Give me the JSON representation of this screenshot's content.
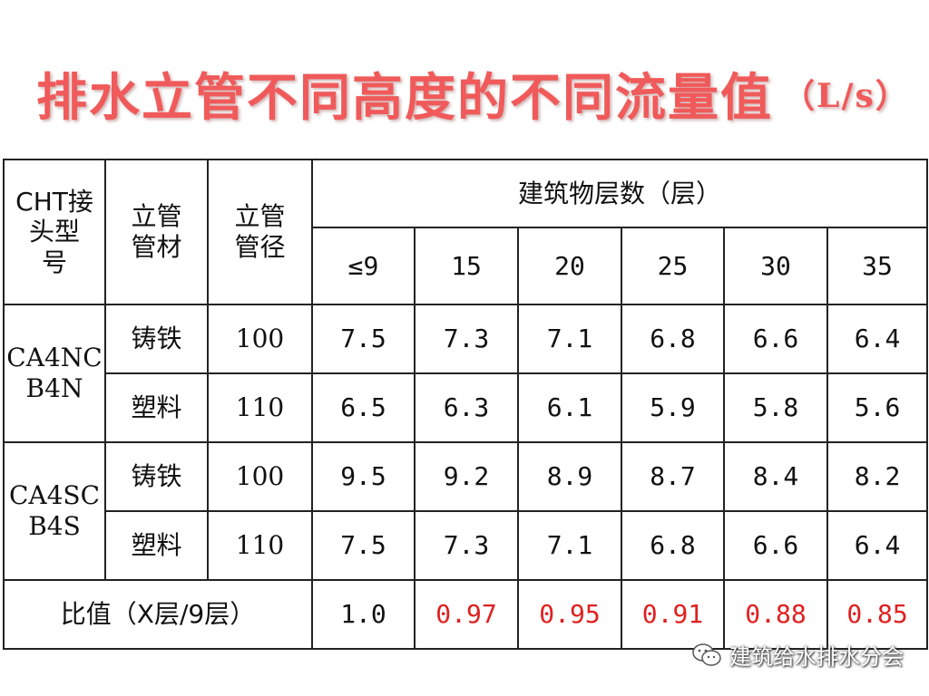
{
  "title": {
    "main": "排水立管不同高度的不同流量值",
    "unit": "（L/s）"
  },
  "table": {
    "headers": {
      "joint_type": [
        "CHT接",
        "头型",
        "号"
      ],
      "pipe_material": [
        "立管",
        "管材"
      ],
      "pipe_diameter": [
        "立管",
        "管径"
      ],
      "floors_group": "建筑物层数（层）",
      "floors": [
        "≤9",
        "15",
        "20",
        "25",
        "30",
        "35"
      ]
    },
    "groups": [
      {
        "joint_type": [
          "CA4NC",
          "B4N"
        ],
        "rows": [
          {
            "material": "铸铁",
            "diameter": "100",
            "values": [
              "7.5",
              "7.3",
              "7.1",
              "6.8",
              "6.6",
              "6.4"
            ]
          },
          {
            "material": "塑料",
            "diameter": "110",
            "values": [
              "6.5",
              "6.3",
              "6.1",
              "5.9",
              "5.8",
              "5.6"
            ]
          }
        ]
      },
      {
        "joint_type": [
          "CA4SC",
          "B4S"
        ],
        "rows": [
          {
            "material": "铸铁",
            "diameter": "100",
            "values": [
              "9.5",
              "9.2",
              "8.9",
              "8.7",
              "8.4",
              "8.2"
            ]
          },
          {
            "material": "塑料",
            "diameter": "110",
            "values": [
              "7.5",
              "7.3",
              "7.1",
              "6.8",
              "6.6",
              "6.4"
            ]
          }
        ]
      }
    ],
    "ratio": {
      "label": "比值（X层/9层）",
      "values": [
        "1.0",
        "0.97",
        "0.95",
        "0.91",
        "0.88",
        "0.85"
      ]
    }
  },
  "watermark": {
    "text": "建筑给水排水分会"
  },
  "colors": {
    "title": "#f05a5a",
    "ratio_highlight": "#e02020",
    "border": "#222222"
  }
}
